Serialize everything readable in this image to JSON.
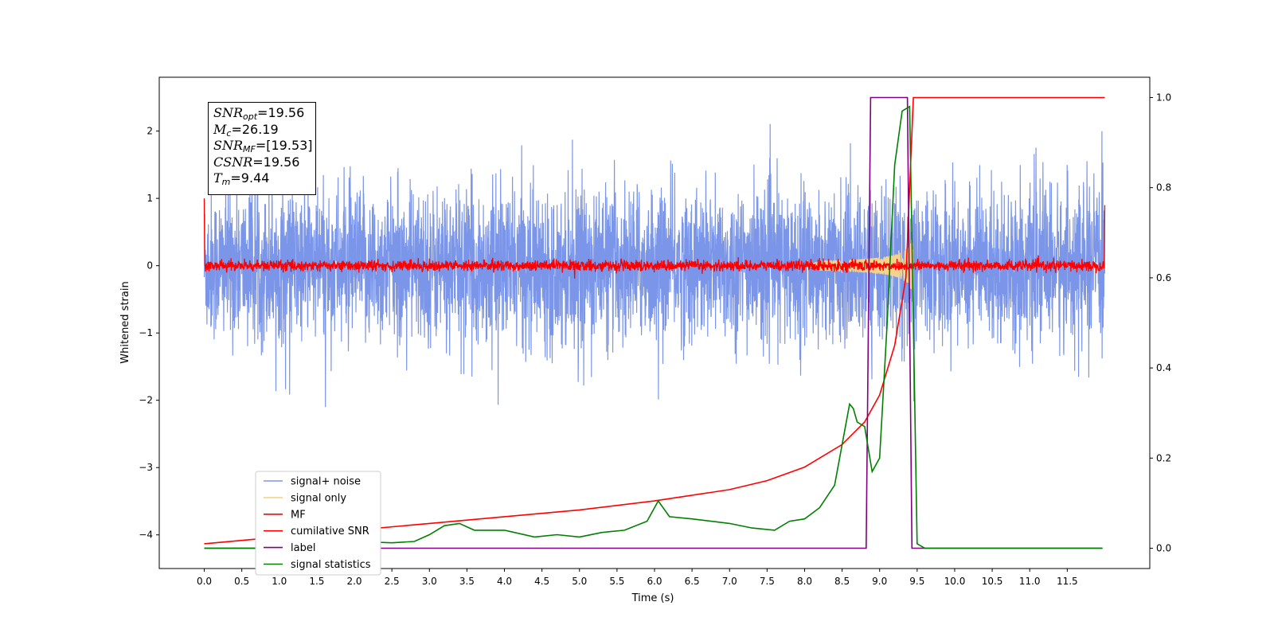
{
  "chart_data": {
    "type": "line",
    "xlabel": "Time (s)",
    "ylabel": "Whitened strain",
    "xlim": [
      -0.6,
      12.6
    ],
    "ylim": [
      -4.5,
      2.8
    ],
    "y2lim": [
      -0.045,
      1.045
    ],
    "x_ticks": [
      0.0,
      0.5,
      1.0,
      1.5,
      2.0,
      2.5,
      3.0,
      3.5,
      4.0,
      4.5,
      5.0,
      5.5,
      6.0,
      6.5,
      7.0,
      7.5,
      8.0,
      8.5,
      9.0,
      9.5,
      10.0,
      10.5,
      11.0,
      11.5
    ],
    "x_tick_labels": [
      "0.0",
      "0.5",
      "1.0",
      "1.5",
      "2.0",
      "2.5",
      "3.0",
      "3.5",
      "4.0",
      "4.5",
      "5.0",
      "5.5",
      "6.0",
      "6.5",
      "7.0",
      "7.5",
      "8.0",
      "8.5",
      "9.0",
      "9.5",
      "10.0",
      "10.5",
      "11.0",
      "11.5"
    ],
    "y_ticks": [
      -4,
      -3,
      -2,
      -1,
      0,
      1,
      2
    ],
    "y_tick_labels": [
      "−4",
      "−3",
      "−2",
      "−1",
      "0",
      "1",
      "2"
    ],
    "y2_ticks": [
      0.0,
      0.2,
      0.4,
      0.6,
      0.8,
      1.0
    ],
    "y2_tick_labels": [
      "0.0",
      "0.2",
      "0.4",
      "0.6",
      "0.8",
      "1.0"
    ],
    "legend_position": "lower-left",
    "legend": [
      {
        "label": "signal+ noise",
        "color": "#7b96e8"
      },
      {
        "label": "signal only",
        "color": "#f5d38c"
      },
      {
        "label": "MF",
        "color": "#ff0000"
      },
      {
        "label": "cumilative SNR",
        "color": "#ff0000"
      },
      {
        "label": "label",
        "color": "#800080"
      },
      {
        "label": "signal statistics",
        "color": "#008000"
      }
    ],
    "series": [
      {
        "name": "signal+ noise",
        "axis": "left",
        "color": "#7b96e8",
        "kind": "noise",
        "x_range": [
          0.0,
          12.0
        ],
        "approx_sigma": 0.55,
        "approx_envelope": [
          -2.1,
          2.25
        ]
      },
      {
        "name": "signal only",
        "axis": "left",
        "color": "#f5d38c",
        "kind": "chirp",
        "x_range": [
          8.0,
          9.45
        ],
        "peak_amplitude": 0.6
      },
      {
        "name": "MF",
        "axis": "left",
        "color": "#ff0000",
        "kind": "noise",
        "x_range": [
          0.0,
          12.0
        ],
        "approx_sigma": 0.04,
        "edge_values": [
          1.0,
          0.9
        ]
      },
      {
        "name": "cumilative SNR",
        "axis": "right",
        "x": [
          0.0,
          1.0,
          2.0,
          3.0,
          4.0,
          5.0,
          6.0,
          7.0,
          7.5,
          8.0,
          8.5,
          8.8,
          9.0,
          9.2,
          9.35,
          9.4,
          9.45,
          12.0
        ],
        "y": [
          0.01,
          0.025,
          0.04,
          0.055,
          0.07,
          0.085,
          0.105,
          0.13,
          0.15,
          0.18,
          0.23,
          0.28,
          0.34,
          0.45,
          0.6,
          0.8,
          1.0,
          1.0
        ]
      },
      {
        "name": "label",
        "axis": "right",
        "x": [
          0.0,
          8.82,
          8.88,
          9.37,
          9.43,
          11.97
        ],
        "y": [
          0.0,
          0.0,
          1.0,
          1.0,
          0.0,
          0.0
        ]
      },
      {
        "name": "signal statistics",
        "axis": "right",
        "x": [
          0.0,
          1.0,
          1.5,
          2.0,
          2.5,
          2.8,
          3.0,
          3.2,
          3.4,
          3.6,
          4.0,
          4.4,
          4.7,
          5.0,
          5.3,
          5.6,
          5.9,
          6.05,
          6.2,
          6.5,
          7.0,
          7.3,
          7.6,
          7.8,
          8.0,
          8.2,
          8.4,
          8.6,
          8.65,
          8.7,
          8.8,
          8.9,
          9.0,
          9.1,
          9.2,
          9.3,
          9.4,
          9.45,
          9.5,
          9.6,
          11.97
        ],
        "y": [
          0.0,
          0.0,
          0.01,
          0.015,
          0.012,
          0.015,
          0.03,
          0.05,
          0.055,
          0.04,
          0.04,
          0.025,
          0.03,
          0.025,
          0.035,
          0.04,
          0.06,
          0.105,
          0.07,
          0.065,
          0.055,
          0.045,
          0.04,
          0.06,
          0.065,
          0.09,
          0.14,
          0.32,
          0.31,
          0.28,
          0.27,
          0.17,
          0.2,
          0.5,
          0.85,
          0.97,
          0.98,
          0.5,
          0.01,
          0.0,
          0.0
        ]
      }
    ]
  },
  "annotation": {
    "snr_opt": {
      "sym": "SNR",
      "sub": "opt",
      "value": "=19.56"
    },
    "mc": {
      "sym": "M",
      "sub": "c",
      "value": "=26.19"
    },
    "snr_mf": {
      "sym": "SNR",
      "sub": "MF",
      "value": "=[19.53]"
    },
    "csnr": {
      "sym": "CSNR",
      "value": "=19.56"
    },
    "tm": {
      "sym": "T",
      "sub": "m",
      "value": "=9.44"
    }
  }
}
